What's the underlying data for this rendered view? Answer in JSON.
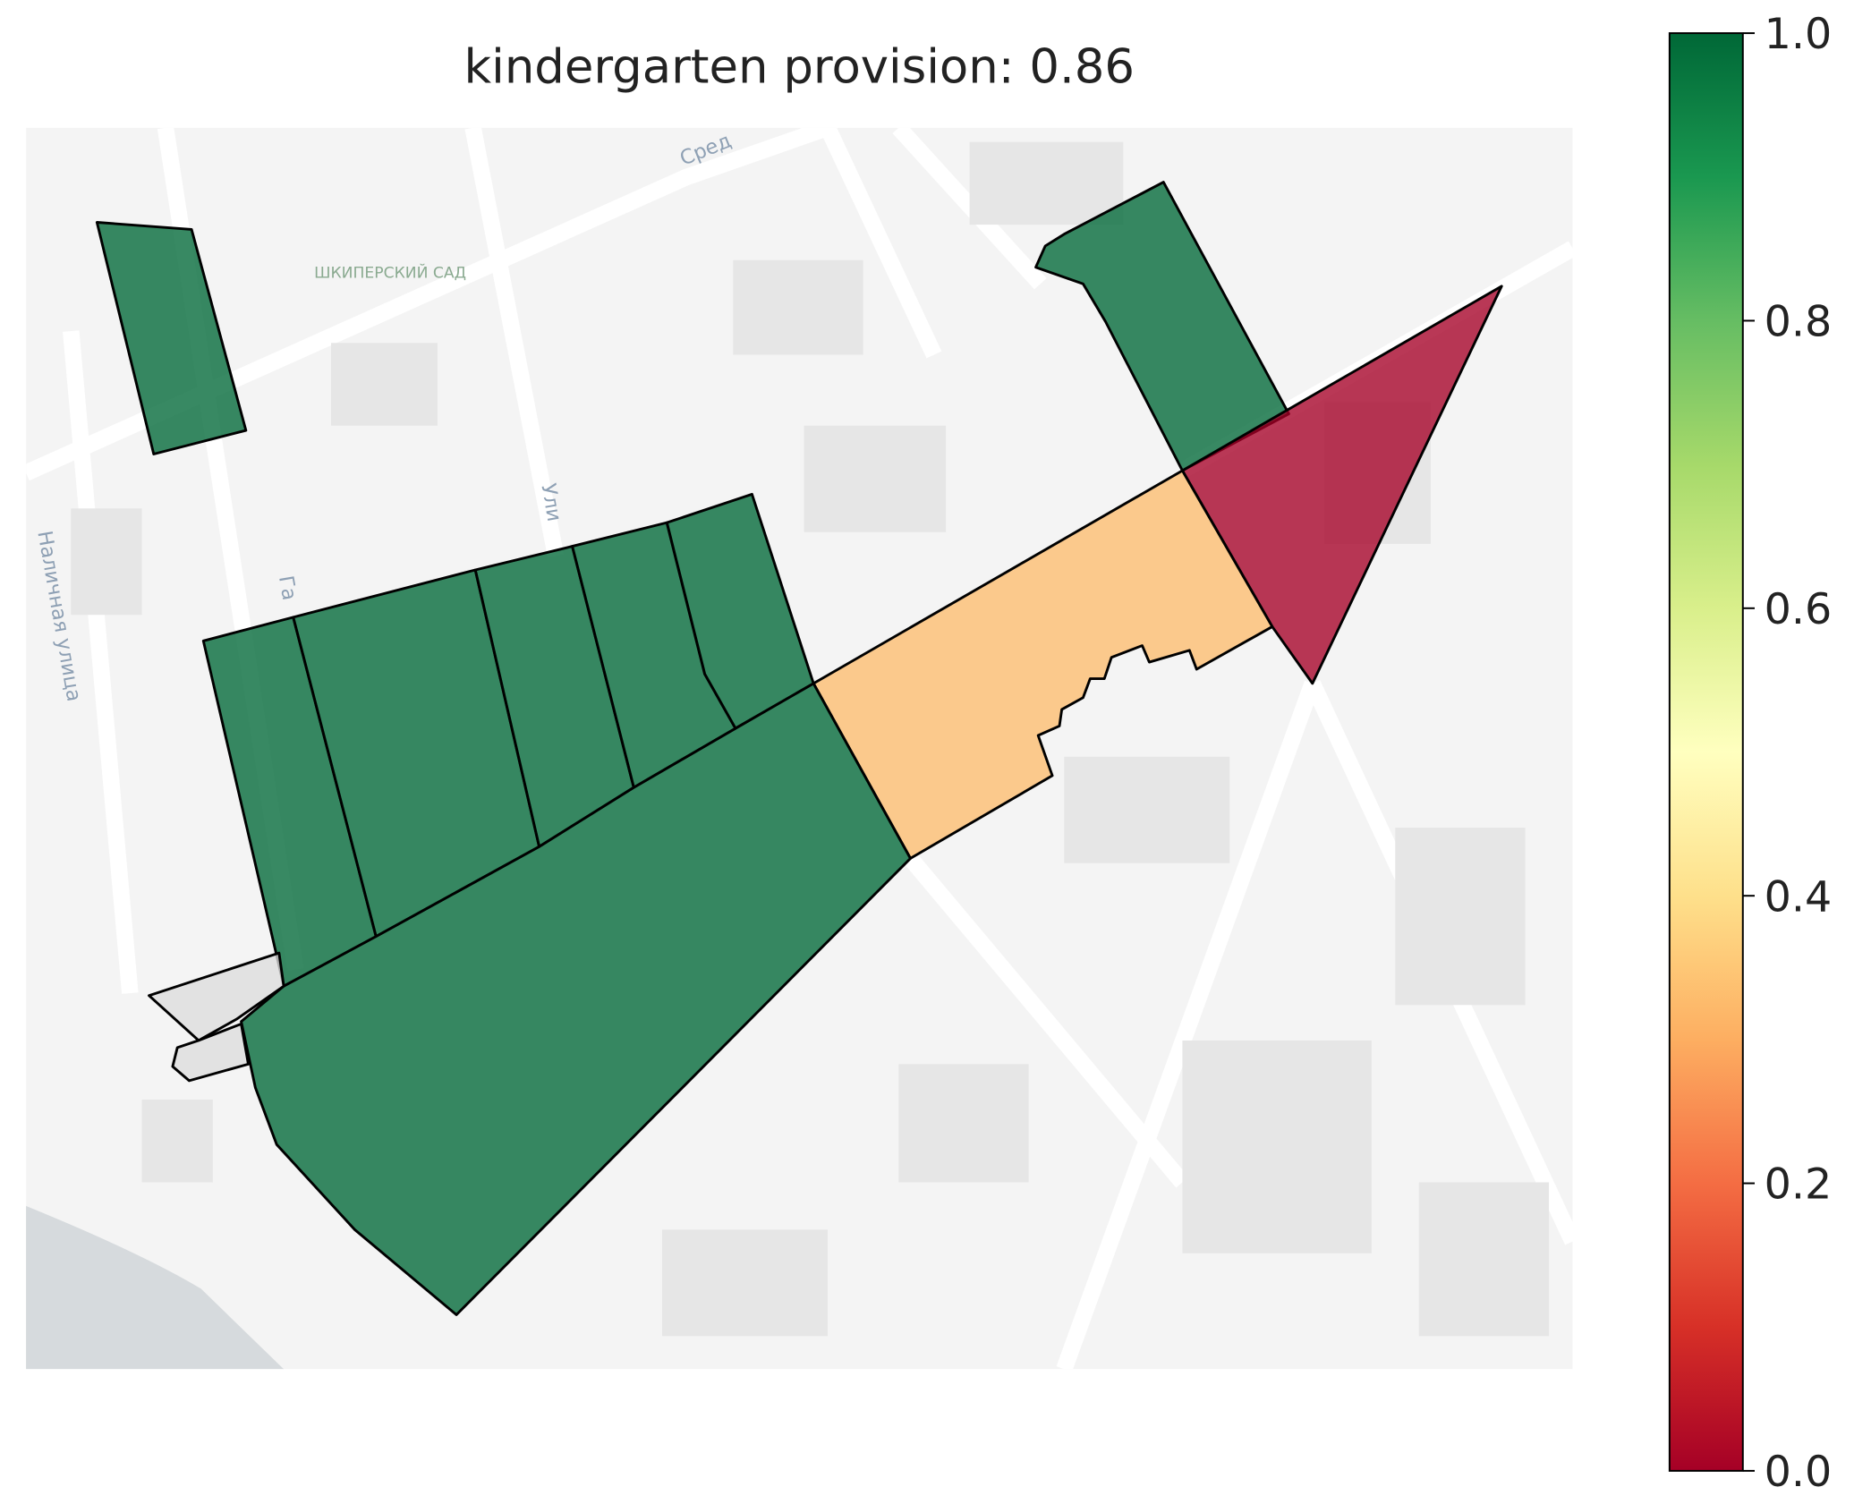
{
  "chart_data": {
    "type": "choropleth",
    "title": "kindergarten provision: 0.86",
    "cmap": "RdYlGn",
    "values": [
      1.0,
      1.0,
      0.0,
      0.33,
      1.0,
      1.0,
      1.0,
      1.0,
      1.0,
      1.0,
      null,
      null
    ],
    "clim": [
      0,
      1
    ],
    "cticks": [
      {
        "value": 0,
        "label": "0.0"
      },
      0.2,
      0.4,
      0.6,
      0.8,
      {
        "value": 1,
        "label": "1.0"
      }
    ],
    "map_labels": [
      "ШКИПЕРСКИЙ САД",
      "Наличная улица",
      "Сред",
      "Ули",
      "Га"
    ]
  }
}
